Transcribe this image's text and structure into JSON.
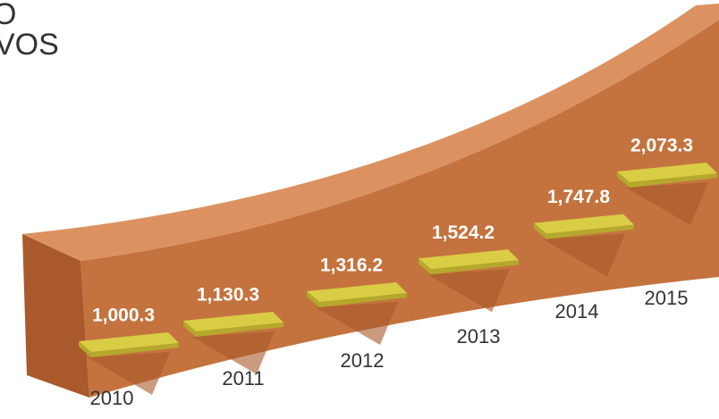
{
  "chart_data": {
    "type": "steps",
    "title_lines": [
      "O",
      "VOS"
    ],
    "categories": [
      "2010",
      "2011",
      "2012",
      "2013",
      "2014",
      "2015"
    ],
    "values": [
      1000.3,
      1130.3,
      1316.2,
      1524.2,
      1747.8,
      2073.3
    ],
    "value_labels": [
      "1,000.3",
      "1,130.3",
      "1,316.2",
      "1,524.2",
      "1,747.8",
      "2,073.3"
    ],
    "color": "#d9cd45"
  }
}
